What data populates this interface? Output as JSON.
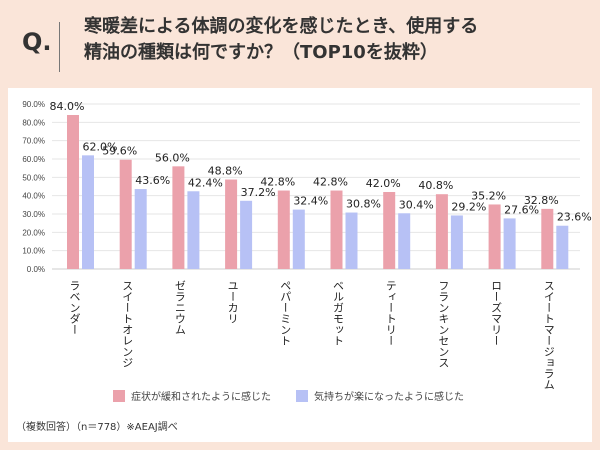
{
  "header": {
    "q_label": "Q.",
    "title_line1": "寒暖差による体調の変化を感じたとき、使用する",
    "title_line2": "精油の種類は何ですか？（TOP10を抜粋）"
  },
  "chart_data": {
    "type": "bar",
    "categories": [
      "ラベンダー",
      "スイートオレンジ",
      "ゼラニウム",
      "ユーカリ",
      "ペパーミント",
      "ベルガモット",
      "ティートリー",
      "フランキンセンス",
      "ローズマリー",
      "スイートマージョラム"
    ],
    "series": [
      {
        "name": "症状が緩和されたように感じた",
        "color": "#eba1ab",
        "values": [
          84.0,
          59.6,
          56.0,
          48.8,
          42.8,
          42.8,
          42.0,
          40.8,
          35.2,
          32.8
        ]
      },
      {
        "name": "気持ちが楽になったように感じた",
        "color": "#b7c1f5",
        "values": [
          62.0,
          43.6,
          42.4,
          37.2,
          32.4,
          30.8,
          30.4,
          29.2,
          27.6,
          23.6
        ]
      }
    ],
    "ylim": [
      0,
      90
    ],
    "yticks": [
      "0.0%",
      "10.0%",
      "20.0%",
      "30.0%",
      "40.0%",
      "50.0%",
      "60.0%",
      "70.0%",
      "80.0%",
      "90.0%"
    ],
    "grid": true,
    "legend": "bottom"
  },
  "footnote": "（複数回答）（n＝778）※AEAJ調べ"
}
